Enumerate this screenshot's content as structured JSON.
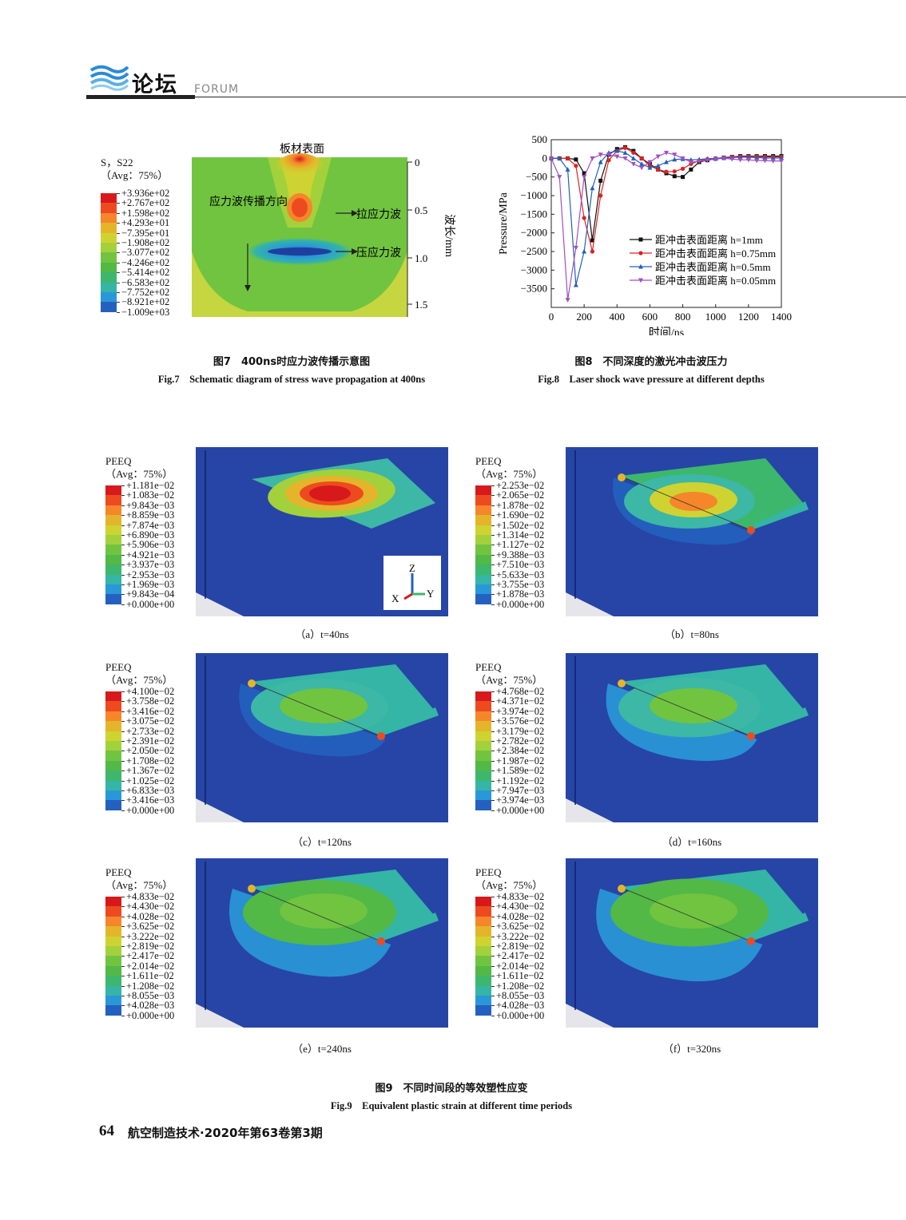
{
  "header": {
    "section_cn": "论坛",
    "section_en": "FORUM"
  },
  "fig7": {
    "surface_label": "板材表面",
    "direction_label": "应力波传播方向",
    "tensile_label": "拉应力波",
    "compressive_label": "压应力波",
    "depth_axis_label": "波长/mm",
    "depth_ticks": [
      "0",
      "0.5",
      "1.0",
      "1.5"
    ],
    "legend_title1": "S，S22",
    "legend_title2": "（Avg：75%）",
    "legend_values": [
      "+3.936e+02",
      "+2.767e+02",
      "+1.598e+02",
      "+4.293e+01",
      "−7.395e+01",
      "−1.908e+02",
      "−3.077e+02",
      "−4.246e+02",
      "−5.414e+02",
      "−6.583e+02",
      "−7.752e+02",
      "−8.921e+02",
      "−1.009e+03"
    ],
    "caption_cn": "图7　400ns时应力波传播示意图",
    "caption_en": "Fig.7　Schematic diagram of stress wave propagation at 400ns"
  },
  "chart_data": {
    "type": "line",
    "xlabel": "时间/ns",
    "ylabel": "Pressure/MPa",
    "xlim": [
      0,
      1400
    ],
    "ylim": [
      -4000,
      500
    ],
    "x_ticks": [
      "0",
      "200",
      "400",
      "600",
      "800",
      "1000",
      "1200",
      "1400"
    ],
    "y_ticks": [
      "500",
      "0",
      "−500",
      "−1000",
      "−1500",
      "−2000",
      "−2500",
      "−3000",
      "−3500"
    ],
    "legend_position": "lower-right",
    "series": [
      {
        "name": "距冲击表面距离 h=1mm",
        "color": "#111111",
        "marker": "square",
        "x": [
          0,
          50,
          100,
          150,
          200,
          250,
          300,
          350,
          400,
          450,
          500,
          550,
          600,
          650,
          700,
          750,
          800,
          850,
          900,
          950,
          1000,
          1050,
          1100,
          1150,
          1200,
          1250,
          1300,
          1350,
          1400
        ],
        "y": [
          0,
          0,
          0,
          -30,
          -400,
          -2200,
          -600,
          100,
          250,
          300,
          200,
          0,
          -150,
          -300,
          -400,
          -480,
          -500,
          -300,
          -100,
          -50,
          -10,
          20,
          40,
          60,
          60,
          60,
          60,
          60,
          60
        ]
      },
      {
        "name": "距冲击表面距离 h=0.75mm",
        "color": "#e02020",
        "marker": "circle",
        "x": [
          0,
          50,
          100,
          150,
          200,
          250,
          300,
          350,
          400,
          450,
          500,
          550,
          600,
          650,
          700,
          750,
          800,
          850,
          900,
          950,
          1000,
          1050,
          1100,
          1150,
          1200,
          1250,
          1300,
          1350,
          1400
        ],
        "y": [
          0,
          0,
          0,
          -200,
          -1600,
          -2500,
          -1000,
          -50,
          200,
          280,
          150,
          0,
          -200,
          -300,
          -360,
          -350,
          -280,
          -150,
          -60,
          -20,
          0,
          20,
          40,
          50,
          50,
          50,
          40,
          40,
          40
        ]
      },
      {
        "name": "距冲击表面距离 h=0.5mm",
        "color": "#2060c0",
        "marker": "triangle",
        "x": [
          0,
          50,
          100,
          150,
          200,
          250,
          300,
          350,
          400,
          450,
          500,
          550,
          600,
          650,
          700,
          750,
          800,
          850,
          900,
          950,
          1000,
          1050,
          1100,
          1150,
          1200,
          1250,
          1300,
          1350,
          1400
        ],
        "y": [
          0,
          0,
          -300,
          -3400,
          -2500,
          -800,
          -100,
          150,
          200,
          150,
          0,
          -150,
          -250,
          -200,
          -100,
          -30,
          -20,
          -40,
          -30,
          -10,
          0,
          10,
          20,
          30,
          30,
          20,
          10,
          10,
          10
        ]
      },
      {
        "name": "距冲击表面距离 h=0.05mm",
        "color": "#a050c0",
        "marker": "triangle-down",
        "x": [
          0,
          50,
          100,
          150,
          200,
          250,
          300,
          350,
          400,
          450,
          500,
          550,
          600,
          650,
          700,
          750,
          800,
          850,
          900,
          950,
          1000,
          1050,
          1100,
          1150,
          1200,
          1250,
          1300,
          1350,
          1400
        ],
        "y": [
          0,
          -500,
          -3800,
          -2400,
          -500,
          0,
          100,
          100,
          50,
          0,
          -150,
          -250,
          -100,
          50,
          150,
          100,
          0,
          -100,
          -80,
          -50,
          -20,
          0,
          -20,
          -40,
          -40,
          -60,
          -60,
          -70,
          -70
        ]
      }
    ]
  },
  "fig8": {
    "caption_cn": "图8　不同深度的激光冲击波压力",
    "caption_en": "Fig.8　Laser shock wave pressure at different depths"
  },
  "fig9": {
    "axes": {
      "z": "Z",
      "x": "X",
      "y": "Y"
    },
    "panels": [
      {
        "label": "（a）t=40ns",
        "title1": "PEEQ",
        "title2": "（Avg：75%）",
        "values": [
          "+1.181e−02",
          "+1.083e−02",
          "+9.843e−03",
          "+8.859e−03",
          "+7.874e−03",
          "+6.890e−03",
          "+5.906e−03",
          "+4.921e−03",
          "+3.937e−03",
          "+2.953e−03",
          "+1.969e−03",
          "+9.843e−04",
          "+0.000e+00"
        ]
      },
      {
        "label": "（b）t=80ns",
        "title1": "PEEQ",
        "title2": "（Avg：75%）",
        "values": [
          "+2.253e−02",
          "+2.065e−02",
          "+1.878e−02",
          "+1.690e−02",
          "+1.502e−02",
          "+1.314e−02",
          "+1.127e−02",
          "+9.388e−03",
          "+7.510e−03",
          "+5.633e−03",
          "+3.755e−03",
          "+1.878e−03",
          "+0.000e+00"
        ]
      },
      {
        "label": "（c）t=120ns",
        "title1": "PEEQ",
        "title2": "（Avg：75%）",
        "values": [
          "+4.100e−02",
          "+3.758e−02",
          "+3.416e−02",
          "+3.075e−02",
          "+2.733e−02",
          "+2.391e−02",
          "+2.050e−02",
          "+1.708e−02",
          "+1.367e−02",
          "+1.025e−02",
          "+6.833e−03",
          "+3.416e−03",
          "+0.000e+00"
        ]
      },
      {
        "label": "（d）t=160ns",
        "title1": "PEEQ",
        "title2": "（Avg：75%）",
        "values": [
          "+4.768e−02",
          "+4.371e−02",
          "+3.974e−02",
          "+3.576e−02",
          "+3.179e−02",
          "+2.782e−02",
          "+2.384e−02",
          "+1.987e−02",
          "+1.589e−02",
          "+1.192e−02",
          "+7.947e−03",
          "+3.974e−03",
          "+0.000e+00"
        ]
      },
      {
        "label": "（e）t=240ns",
        "title1": "PEEQ",
        "title2": "（Avg：75%）",
        "values": [
          "+4.833e−02",
          "+4.430e−02",
          "+4.028e−02",
          "+3.625e−02",
          "+3.222e−02",
          "+2.819e−02",
          "+2.417e−02",
          "+2.014e−02",
          "+1.611e−02",
          "+1.208e−02",
          "+8.055e−03",
          "+4.028e−03",
          "+0.000e+00"
        ]
      },
      {
        "label": "（f）t=320ns",
        "title1": "PEEQ",
        "title2": "（Avg：75%）",
        "values": [
          "+4.833e−02",
          "+4.430e−02",
          "+4.028e−02",
          "+3.625e−02",
          "+3.222e−02",
          "+2.819e−02",
          "+2.417e−02",
          "+2.014e−02",
          "+1.611e−02",
          "+1.208e−02",
          "+8.055e−03",
          "+4.028e−03",
          "+0.000e+00"
        ]
      }
    ],
    "caption_cn": "图9　不同时间段的等效塑性应变",
    "caption_en": "Fig.9　Equivalent plastic strain at different time periods"
  },
  "colormap": [
    "#d7191c",
    "#ee4a20",
    "#f5862a",
    "#e4b52a",
    "#cfd331",
    "#a3d13b",
    "#71c440",
    "#52b846",
    "#3db76b",
    "#34b5a6",
    "#2a98d8",
    "#2460c0",
    "#1e3f9e"
  ],
  "footer": {
    "page": "64",
    "journal": "航空制造技术·2020年第63卷第3期"
  }
}
